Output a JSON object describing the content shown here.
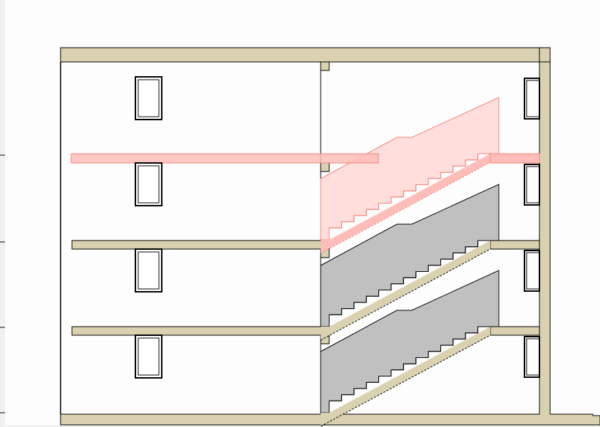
{
  "drawing": {
    "type": "building-section",
    "floors": 4,
    "colors": {
      "background": "#fdfdfd",
      "margin": "#f0f0f0",
      "wall_fill": "#d9d1af",
      "line": "#000000",
      "stair_fill": "#c0c0c0",
      "highlight_fill": "#ffdedc",
      "highlight_band": "#ffbdb9",
      "highlight_line": "#f58278"
    }
  }
}
